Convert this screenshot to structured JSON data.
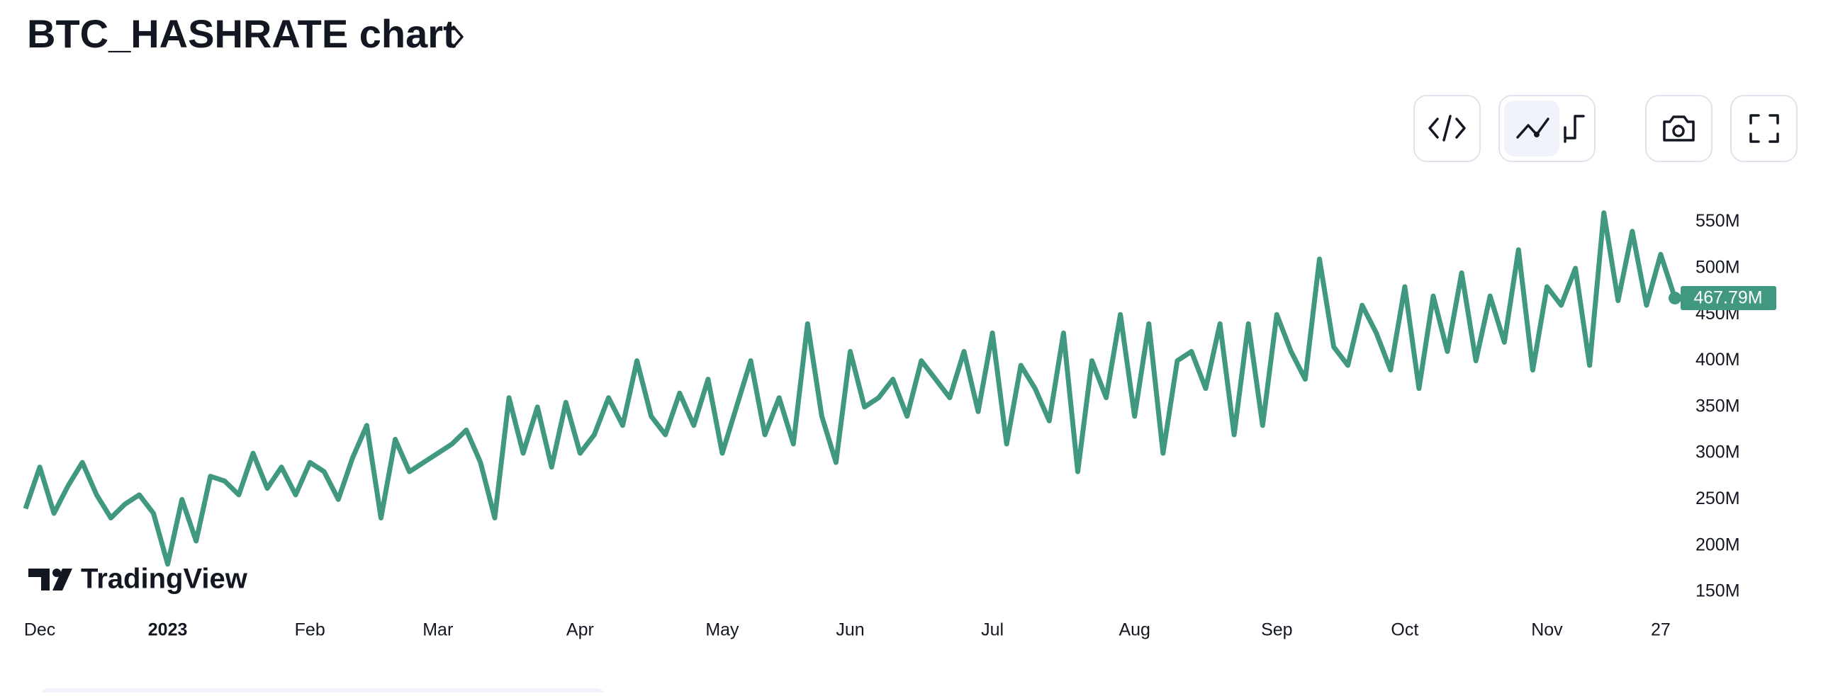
{
  "header": {
    "title": "BTC_HASHRATE chart"
  },
  "logo": {
    "text": "TradingView"
  },
  "chart_data": {
    "type": "line",
    "categories": [
      null,
      "Dec",
      null,
      null,
      null,
      null,
      null,
      null,
      null,
      null,
      "2023",
      null,
      null,
      null,
      null,
      null,
      null,
      null,
      null,
      null,
      "Feb",
      null,
      null,
      null,
      null,
      null,
      null,
      null,
      null,
      "Mar",
      null,
      null,
      null,
      null,
      null,
      null,
      null,
      null,
      null,
      "Apr",
      null,
      null,
      null,
      null,
      null,
      null,
      null,
      null,
      null,
      "May",
      null,
      null,
      null,
      null,
      null,
      null,
      null,
      null,
      "Jun",
      null,
      null,
      null,
      null,
      null,
      null,
      null,
      null,
      null,
      "Jul",
      null,
      null,
      null,
      null,
      null,
      null,
      null,
      null,
      null,
      "Aug",
      null,
      null,
      null,
      null,
      null,
      null,
      null,
      null,
      null,
      "Sep",
      null,
      null,
      null,
      null,
      null,
      null,
      null,
      null,
      "Oct",
      null,
      null,
      null,
      null,
      null,
      null,
      null,
      null,
      null,
      "Nov",
      null,
      null,
      null,
      null,
      null,
      null,
      null,
      "27",
      null
    ],
    "series": [
      {
        "name": "BTC_HASHRATE",
        "color": "#409880",
        "values": [
          240,
          285,
          235,
          265,
          290,
          255,
          230,
          245,
          255,
          235,
          180,
          250,
          205,
          275,
          270,
          255,
          300,
          262,
          285,
          255,
          290,
          280,
          250,
          295,
          330,
          230,
          315,
          280,
          290,
          300,
          310,
          325,
          290,
          230,
          360,
          300,
          350,
          285,
          355,
          300,
          320,
          360,
          330,
          400,
          340,
          320,
          365,
          330,
          380,
          300,
          350,
          400,
          320,
          360,
          310,
          440,
          340,
          290,
          410,
          350,
          360,
          380,
          340,
          400,
          380,
          360,
          410,
          345,
          430,
          310,
          395,
          370,
          335,
          430,
          280,
          400,
          360,
          450,
          340,
          440,
          300,
          400,
          410,
          370,
          440,
          320,
          440,
          330,
          450,
          410,
          380,
          510,
          415,
          395,
          460,
          430,
          390,
          480,
          370,
          470,
          410,
          495,
          400,
          470,
          420,
          520,
          390,
          480,
          460,
          500,
          395,
          560,
          465,
          540,
          460,
          515,
          467.79
        ],
        "value_labels": [
          null,
          null,
          null,
          null,
          null,
          null,
          null,
          null,
          null,
          null,
          null,
          null,
          null,
          null,
          null,
          null,
          null,
          null,
          null,
          null,
          null,
          null,
          null,
          null,
          null,
          null,
          null,
          null,
          null,
          null,
          null,
          null,
          null,
          null,
          null,
          null,
          null,
          null,
          null,
          null,
          null,
          null,
          null,
          null,
          null,
          null,
          null,
          null,
          null,
          null,
          null,
          null,
          null,
          null,
          null,
          null,
          null,
          null,
          null,
          null,
          null,
          null,
          null,
          null,
          null,
          null,
          null,
          null,
          null,
          null,
          null,
          null,
          null,
          null,
          null,
          null,
          null,
          null,
          null,
          null,
          null,
          null,
          null,
          null,
          null,
          null,
          null,
          null,
          null,
          null,
          null,
          null,
          null,
          null,
          null,
          null,
          null,
          null,
          null,
          null,
          null,
          null,
          null,
          null,
          null,
          null,
          null,
          null,
          null,
          null,
          null,
          null,
          null,
          null,
          null,
          null,
          "467.79M"
        ]
      }
    ],
    "ylim": [
      127,
      588
    ],
    "yticks": [
      {
        "value": 150,
        "label": "150M"
      },
      {
        "value": 200,
        "label": "200M"
      },
      {
        "value": 250,
        "label": "250M"
      },
      {
        "value": 300,
        "label": "300M"
      },
      {
        "value": 350,
        "label": "350M"
      },
      {
        "value": 400,
        "label": "400M"
      },
      {
        "value": 450,
        "label": "450M"
      },
      {
        "value": 500,
        "label": "500M"
      },
      {
        "value": 550,
        "label": "550M"
      }
    ],
    "grid": false
  }
}
